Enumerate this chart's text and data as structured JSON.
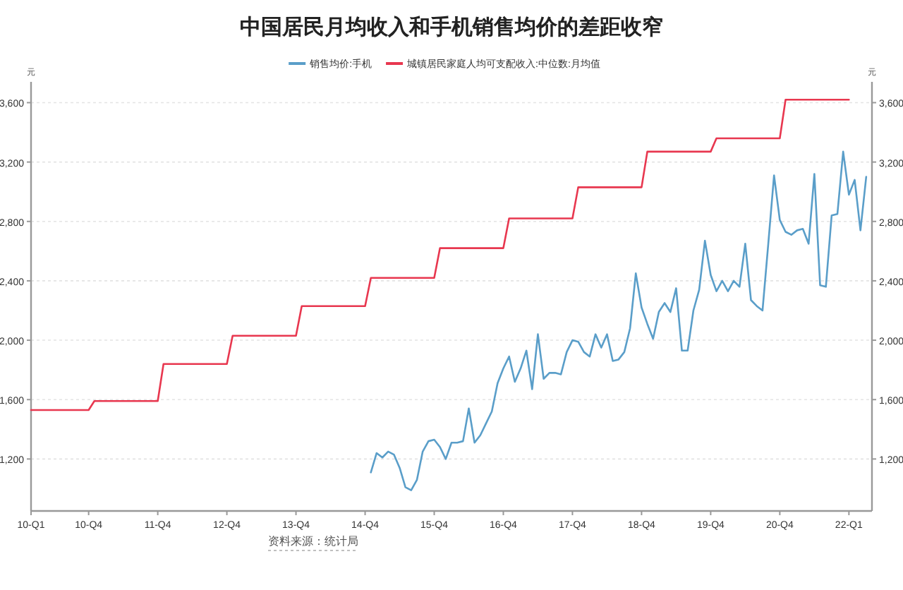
{
  "chart_data": {
    "type": "line",
    "title": "中国居民月均收入和手机销售均价的差距收窄",
    "ylabel": "元",
    "y2label": "元",
    "categories": [
      "10-Q1",
      null,
      null,
      null,
      null,
      null,
      null,
      null,
      null,
      null,
      "10-Q4",
      null,
      null,
      null,
      null,
      null,
      null,
      null,
      null,
      null,
      null,
      null,
      "11-Q4",
      null,
      null,
      null,
      null,
      null,
      null,
      null,
      null,
      null,
      null,
      null,
      "12-Q4",
      null,
      null,
      null,
      null,
      null,
      null,
      null,
      null,
      null,
      null,
      null,
      "13-Q4",
      null,
      null,
      null,
      null,
      null,
      null,
      null,
      null,
      null,
      null,
      null,
      "14-Q4",
      null,
      null,
      null,
      null,
      null,
      null,
      null,
      null,
      null,
      null,
      null,
      "15-Q4",
      null,
      null,
      null,
      null,
      null,
      null,
      null,
      null,
      null,
      null,
      null,
      "16-Q4",
      null,
      null,
      null,
      null,
      null,
      null,
      null,
      null,
      null,
      null,
      null,
      "17-Q4",
      null,
      null,
      null,
      null,
      null,
      null,
      null,
      null,
      null,
      null,
      null,
      "18-Q4",
      null,
      null,
      null,
      null,
      null,
      null,
      null,
      null,
      null,
      null,
      null,
      "19-Q4",
      null,
      null,
      null,
      null,
      null,
      null,
      null,
      null,
      null,
      null,
      null,
      "20-Q4",
      null,
      null,
      null,
      null,
      null,
      null,
      null,
      null,
      null,
      null,
      null,
      "22-Q1",
      null,
      null,
      null
    ],
    "ylim": [
      850,
      3740
    ],
    "yticks": [
      {
        "value": 1200,
        "label": "1,200"
      },
      {
        "value": 1600,
        "label": "1,600"
      },
      {
        "value": 2000,
        "label": "2,000"
      },
      {
        "value": 2400,
        "label": "2,400"
      },
      {
        "value": 2800,
        "label": "2,800"
      },
      {
        "value": 3200,
        "label": "3,200"
      },
      {
        "value": 3600,
        "label": "3,600"
      }
    ],
    "y2lim": [
      850,
      3740
    ],
    "y2ticks": [
      {
        "value": 1200,
        "label": "1,200"
      },
      {
        "value": 1600,
        "label": "1,600"
      },
      {
        "value": 2000,
        "label": "2,000"
      },
      {
        "value": 2400,
        "label": "2,400"
      },
      {
        "value": 2800,
        "label": "2,800"
      },
      {
        "value": 3200,
        "label": "3,200"
      },
      {
        "value": 3600,
        "label": "3,600"
      }
    ],
    "grid": "y",
    "legend": "top",
    "marker": "none",
    "line_style": "solid",
    "series": [
      {
        "name": "销售均价:手机",
        "color": "#5a9ec9",
        "values": [
          null,
          null,
          null,
          null,
          null,
          null,
          null,
          null,
          null,
          null,
          null,
          null,
          null,
          null,
          null,
          null,
          null,
          null,
          null,
          null,
          null,
          null,
          null,
          null,
          null,
          null,
          null,
          null,
          null,
          null,
          null,
          null,
          null,
          null,
          null,
          null,
          null,
          null,
          null,
          null,
          null,
          null,
          null,
          null,
          null,
          null,
          null,
          null,
          null,
          null,
          null,
          null,
          null,
          null,
          null,
          null,
          null,
          null,
          null,
          1110,
          1240,
          1210,
          1250,
          1230,
          1140,
          1010,
          990,
          1060,
          1250,
          1320,
          1330,
          1280,
          1200,
          1310,
          1310,
          1320,
          1540,
          1310,
          1360,
          1440,
          1520,
          1710,
          1810,
          1890,
          1720,
          1810,
          1930,
          1670,
          2040,
          1740,
          1780,
          1780,
          1770,
          1920,
          2000,
          1990,
          1920,
          1890,
          2040,
          1950,
          2040,
          1860,
          1870,
          1920,
          2080,
          2450,
          2220,
          2110,
          2010,
          2190,
          2250,
          2190,
          2350,
          1930,
          1930,
          2200,
          2340,
          2670,
          2440,
          2330,
          2400,
          2330,
          2400,
          2360,
          2650,
          2270,
          2230,
          2200,
          2650,
          3110,
          2810,
          2730,
          2710,
          2740,
          2750,
          2650,
          3120,
          2370,
          2360,
          2840,
          2850,
          3270,
          2980,
          3080,
          2740,
          3100
        ]
      },
      {
        "name": "城镇居民家庭人均可支配收入:中位数:月均值",
        "color": "#e8374f",
        "values": [
          1530,
          1530,
          1530,
          1530,
          1530,
          1530,
          1530,
          1530,
          1530,
          1530,
          1530,
          1590,
          1590,
          1590,
          1590,
          1590,
          1590,
          1590,
          1590,
          1590,
          1590,
          1590,
          1590,
          1840,
          1840,
          1840,
          1840,
          1840,
          1840,
          1840,
          1840,
          1840,
          1840,
          1840,
          1840,
          2030,
          2030,
          2030,
          2030,
          2030,
          2030,
          2030,
          2030,
          2030,
          2030,
          2030,
          2030,
          2230,
          2230,
          2230,
          2230,
          2230,
          2230,
          2230,
          2230,
          2230,
          2230,
          2230,
          2230,
          2420,
          2420,
          2420,
          2420,
          2420,
          2420,
          2420,
          2420,
          2420,
          2420,
          2420,
          2420,
          2620,
          2620,
          2620,
          2620,
          2620,
          2620,
          2620,
          2620,
          2620,
          2620,
          2620,
          2620,
          2820,
          2820,
          2820,
          2820,
          2820,
          2820,
          2820,
          2820,
          2820,
          2820,
          2820,
          2820,
          3030,
          3030,
          3030,
          3030,
          3030,
          3030,
          3030,
          3030,
          3030,
          3030,
          3030,
          3030,
          3270,
          3270,
          3270,
          3270,
          3270,
          3270,
          3270,
          3270,
          3270,
          3270,
          3270,
          3270,
          3360,
          3360,
          3360,
          3360,
          3360,
          3360,
          3360,
          3360,
          3360,
          3360,
          3360,
          3360,
          3620,
          3620,
          3620,
          3620,
          3620,
          3620,
          3620,
          3620,
          3620,
          3620,
          3620,
          3620,
          null,
          null,
          null
        ]
      }
    ],
    "annotations": [
      "资料来源：统计局"
    ]
  }
}
